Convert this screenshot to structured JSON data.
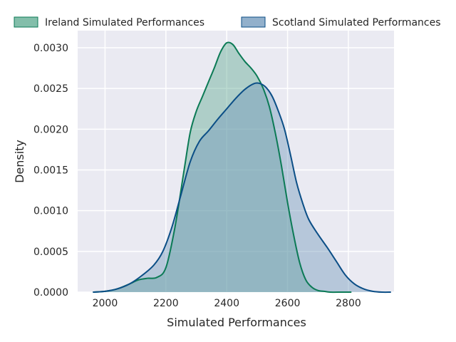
{
  "chart_data": {
    "type": "area",
    "title": "",
    "xlabel": "Simulated Performances",
    "ylabel": "Density",
    "xlim": [
      1910,
      2950
    ],
    "ylim": [
      0,
      0.00321
    ],
    "xticks": [
      2000,
      2200,
      2400,
      2600,
      2800
    ],
    "xtick_labels": [
      "2000",
      "2200",
      "2400",
      "2600",
      "2800"
    ],
    "yticks": [
      0,
      0.0005,
      0.001,
      0.0015,
      0.002,
      0.0025,
      0.003
    ],
    "ytick_labels": [
      "0.0000",
      "0.0005",
      "0.0010",
      "0.0015",
      "0.0020",
      "0.0025",
      "0.0030"
    ],
    "grid": true,
    "legend_position": "top",
    "series": [
      {
        "name": "Ireland Simulated Performances",
        "line_color": "#0b7a55",
        "fill_color": "#5aa88e",
        "x": [
          1960,
          2000,
          2040,
          2080,
          2110,
          2140,
          2170,
          2200,
          2230,
          2260,
          2280,
          2300,
          2320,
          2340,
          2360,
          2380,
          2400,
          2420,
          2440,
          2460,
          2480,
          2500,
          2520,
          2540,
          2560,
          2580,
          2600,
          2620,
          2640,
          2660,
          2680,
          2700,
          2720,
          2740,
          2780,
          2810
        ],
        "y": [
          0.0,
          1e-05,
          4e-05,
          0.0001,
          0.00015,
          0.00017,
          0.00018,
          0.0003,
          0.0008,
          0.0015,
          0.00196,
          0.00222,
          0.0024,
          0.00258,
          0.00276,
          0.00295,
          0.00306,
          0.00304,
          0.00293,
          0.00283,
          0.00275,
          0.00265,
          0.0025,
          0.00228,
          0.00195,
          0.00155,
          0.0011,
          0.0007,
          0.00036,
          0.00015,
          6e-05,
          2e-05,
          1e-05,
          0.0,
          0.0,
          0.0
        ]
      },
      {
        "name": "Scotland Simulated Performances",
        "line_color": "#0b4e86",
        "fill_color": "#6d95ba",
        "x": [
          1960,
          2000,
          2040,
          2080,
          2120,
          2160,
          2190,
          2220,
          2250,
          2280,
          2310,
          2340,
          2370,
          2400,
          2430,
          2460,
          2490,
          2510,
          2530,
          2550,
          2570,
          2590,
          2610,
          2630,
          2650,
          2670,
          2700,
          2730,
          2760,
          2790,
          2820,
          2850,
          2880,
          2910,
          2940
        ],
        "y": [
          0.0,
          1e-05,
          4e-05,
          0.0001,
          0.0002,
          0.00033,
          0.0005,
          0.0008,
          0.0012,
          0.0016,
          0.00185,
          0.00198,
          0.00212,
          0.00225,
          0.00238,
          0.00249,
          0.00256,
          0.00256,
          0.00251,
          0.0024,
          0.00222,
          0.002,
          0.00168,
          0.00134,
          0.00109,
          0.00089,
          0.00071,
          0.00055,
          0.00038,
          0.00021,
          0.0001,
          4e-05,
          1e-05,
          0.0,
          0.0
        ]
      }
    ]
  }
}
